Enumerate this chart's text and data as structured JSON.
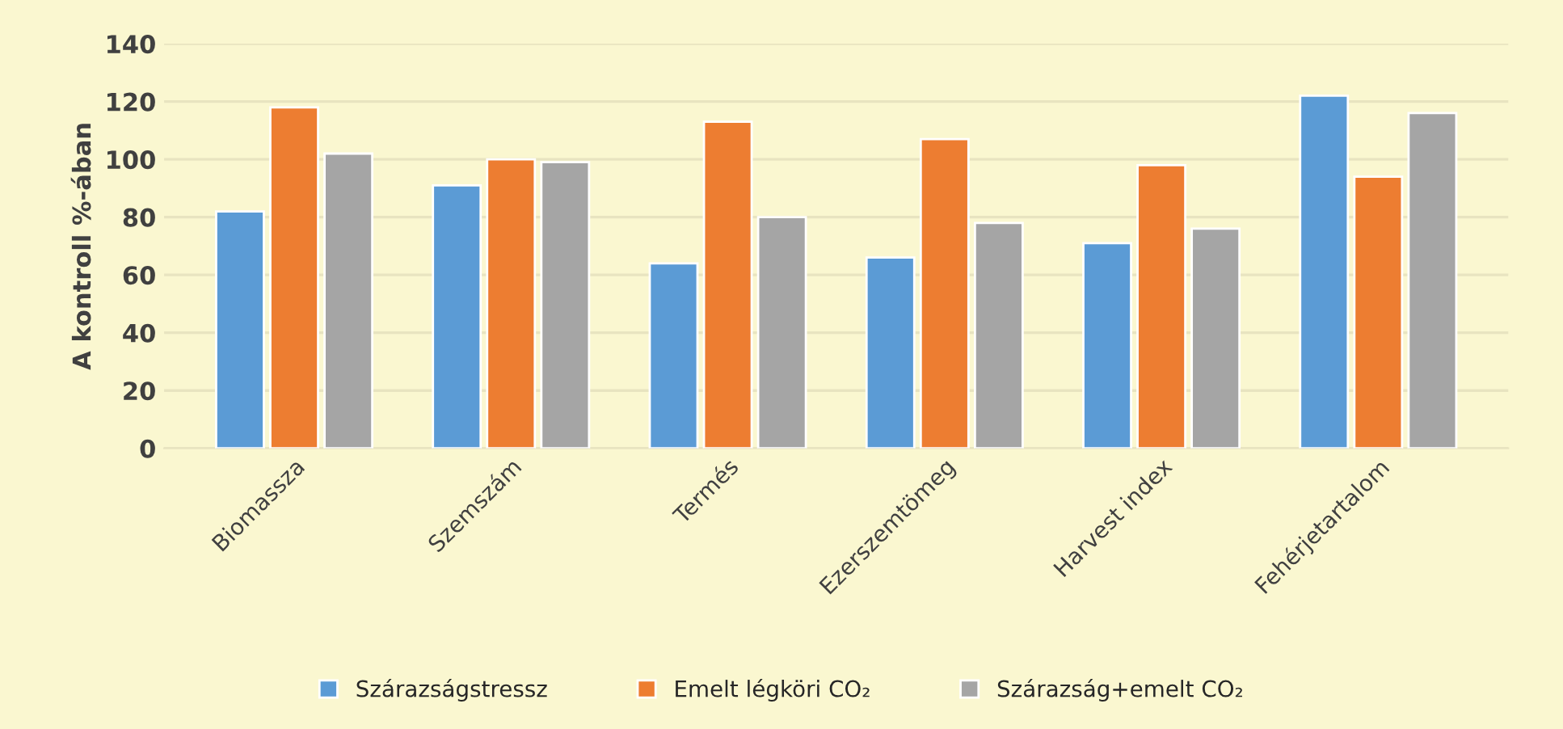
{
  "chart_data": {
    "type": "bar",
    "ylabel": "A kontroll %-ában",
    "categories": [
      "Biomassza",
      "Szemszám",
      "Termés",
      "Ezerszemtömeg",
      "Harvest index",
      "Fehérjetartalom"
    ],
    "series": [
      {
        "name": "Szárazságstressz",
        "color": "#5b9bd5",
        "values": [
          82,
          91,
          64,
          66,
          71,
          122
        ]
      },
      {
        "name": "Emelt légköri CO₂",
        "color": "#ed7d31",
        "values": [
          118,
          100,
          113,
          107,
          98,
          94
        ]
      },
      {
        "name": "Szárazság+emelt CO₂",
        "color": "#a5a5a5",
        "values": [
          102,
          99,
          80,
          78,
          76,
          116
        ]
      }
    ],
    "ylim": [
      0,
      140
    ],
    "yticks": [
      0,
      20,
      40,
      60,
      80,
      100,
      120,
      140
    ],
    "grid": "y",
    "legend": "bottom"
  }
}
